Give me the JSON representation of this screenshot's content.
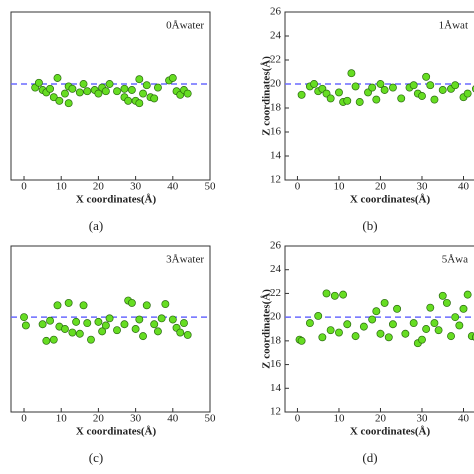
{
  "chart_data": [
    {
      "type": "scatter",
      "annotation": "0Åwater",
      "caption": "(a)",
      "xlabel": "X coordinates(Å)",
      "color": "#66dd22",
      "hline": 20,
      "hline_color": "#6a6aff",
      "xlim": [
        -3.5,
        50
      ],
      "ylim": [
        12,
        26
      ],
      "xticks": [
        0,
        10,
        20,
        30,
        40,
        50
      ],
      "x": [
        3,
        4,
        5,
        6,
        7,
        8,
        9,
        9.5,
        11,
        12,
        12,
        13,
        15,
        16,
        17,
        19,
        20,
        21,
        22,
        23,
        25,
        27,
        27,
        28,
        29,
        30,
        31,
        31,
        32,
        33,
        34,
        35,
        36,
        39,
        40,
        41,
        42,
        43,
        44
      ],
      "values": [
        19.7,
        20.1,
        19.5,
        19.3,
        19.6,
        18.9,
        20.5,
        18.6,
        19.2,
        18.4,
        19.8,
        19.6,
        19.3,
        20,
        19.4,
        19.5,
        19.2,
        19.7,
        19.4,
        20,
        19.4,
        19.6,
        18.9,
        18.6,
        19.5,
        18.6,
        20.4,
        18.4,
        19.2,
        19.9,
        18.9,
        18.8,
        19.7,
        20.3,
        20.5,
        19.4,
        19.1,
        19.5,
        19.2
      ]
    },
    {
      "type": "scatter",
      "annotation": "1Åwat",
      "caption": "(b)",
      "xlabel": "X coordinates(Å)",
      "ylabel": "Z coordinates(Å)",
      "color": "#66dd22",
      "hline": 20,
      "hline_color": "#6a6aff",
      "xlim": [
        -3,
        50
      ],
      "ylim": [
        12,
        26
      ],
      "xticks": [
        0,
        10,
        20,
        30,
        40
      ],
      "yticks": [
        12,
        14,
        16,
        18,
        20,
        22,
        24,
        26
      ],
      "x": [
        1,
        3,
        4,
        5,
        6,
        7,
        8,
        10,
        11,
        12,
        13,
        14,
        15,
        17,
        18,
        19,
        20,
        21,
        23,
        25,
        27,
        28,
        29,
        30,
        31,
        32,
        33,
        35,
        37,
        38,
        40,
        41,
        43
      ],
      "values": [
        19.1,
        19.8,
        20,
        19.4,
        19.6,
        19.2,
        18.8,
        19.3,
        18.5,
        18.6,
        20.9,
        19.8,
        18.5,
        19.3,
        19.7,
        18.7,
        20,
        19.5,
        19.7,
        18.8,
        19.7,
        19.9,
        19.2,
        19,
        20.6,
        19.9,
        18.7,
        19.5,
        19.6,
        19.9,
        18.9,
        19.2,
        19.6
      ]
    },
    {
      "type": "scatter",
      "annotation": "3Åwater",
      "caption": "(c)",
      "xlabel": "X coordinates(Å)",
      "color": "#66dd22",
      "hline": 20,
      "hline_color": "#6a6aff",
      "xlim": [
        -3.5,
        50
      ],
      "ylim": [
        12,
        26
      ],
      "xticks": [
        0,
        10,
        20,
        30,
        40,
        50
      ],
      "x": [
        0,
        0.5,
        5,
        6,
        7,
        8,
        9,
        9.5,
        11,
        12,
        13,
        14,
        15,
        16,
        17,
        18,
        20,
        21,
        22,
        23,
        25,
        27,
        28,
        29,
        30,
        31,
        32,
        33,
        35,
        36,
        37,
        38,
        40,
        41,
        42,
        43,
        44
      ],
      "values": [
        20,
        19.3,
        19.4,
        18,
        19.7,
        18.1,
        21,
        19.2,
        19,
        21.2,
        18.7,
        19.6,
        18.6,
        21,
        19.5,
        18.1,
        19.6,
        18.8,
        19.3,
        19.9,
        18.9,
        19.4,
        21.4,
        21.2,
        19,
        19.8,
        18.4,
        21,
        19.4,
        18.8,
        19.9,
        21.1,
        19.8,
        19.1,
        18.7,
        19.5,
        18.5
      ]
    },
    {
      "type": "scatter",
      "annotation": "5Åwa",
      "caption": "(d)",
      "xlabel": "X coordinates(Å)",
      "ylabel": "Z coordinates(Å)",
      "color": "#66dd22",
      "hline": 20,
      "hline_color": "#6a6aff",
      "xlim": [
        -3,
        50
      ],
      "ylim": [
        12,
        26
      ],
      "xticks": [
        0,
        10,
        20,
        30,
        40
      ],
      "yticks": [
        12,
        14,
        16,
        18,
        20,
        22,
        24,
        26
      ],
      "x": [
        0.5,
        1,
        3,
        5,
        6,
        7,
        8,
        9,
        10,
        11,
        12,
        14,
        16,
        18,
        19,
        20,
        21,
        22,
        23,
        24,
        26,
        28,
        29,
        30,
        31,
        32,
        33,
        34,
        35,
        36,
        37,
        38,
        39,
        40,
        41,
        42,
        43
      ],
      "values": [
        18.1,
        18,
        19.5,
        20.1,
        18.3,
        22,
        18.9,
        21.8,
        18.7,
        21.9,
        19.4,
        18.4,
        19.2,
        19.8,
        20.5,
        18.6,
        21.2,
        18.3,
        19.4,
        20.7,
        18.6,
        19.5,
        17.8,
        18.1,
        19,
        20.8,
        19.5,
        18.9,
        21.8,
        21.2,
        18.4,
        20,
        19.3,
        20.7,
        21.9,
        18.4,
        18.3
      ]
    }
  ]
}
